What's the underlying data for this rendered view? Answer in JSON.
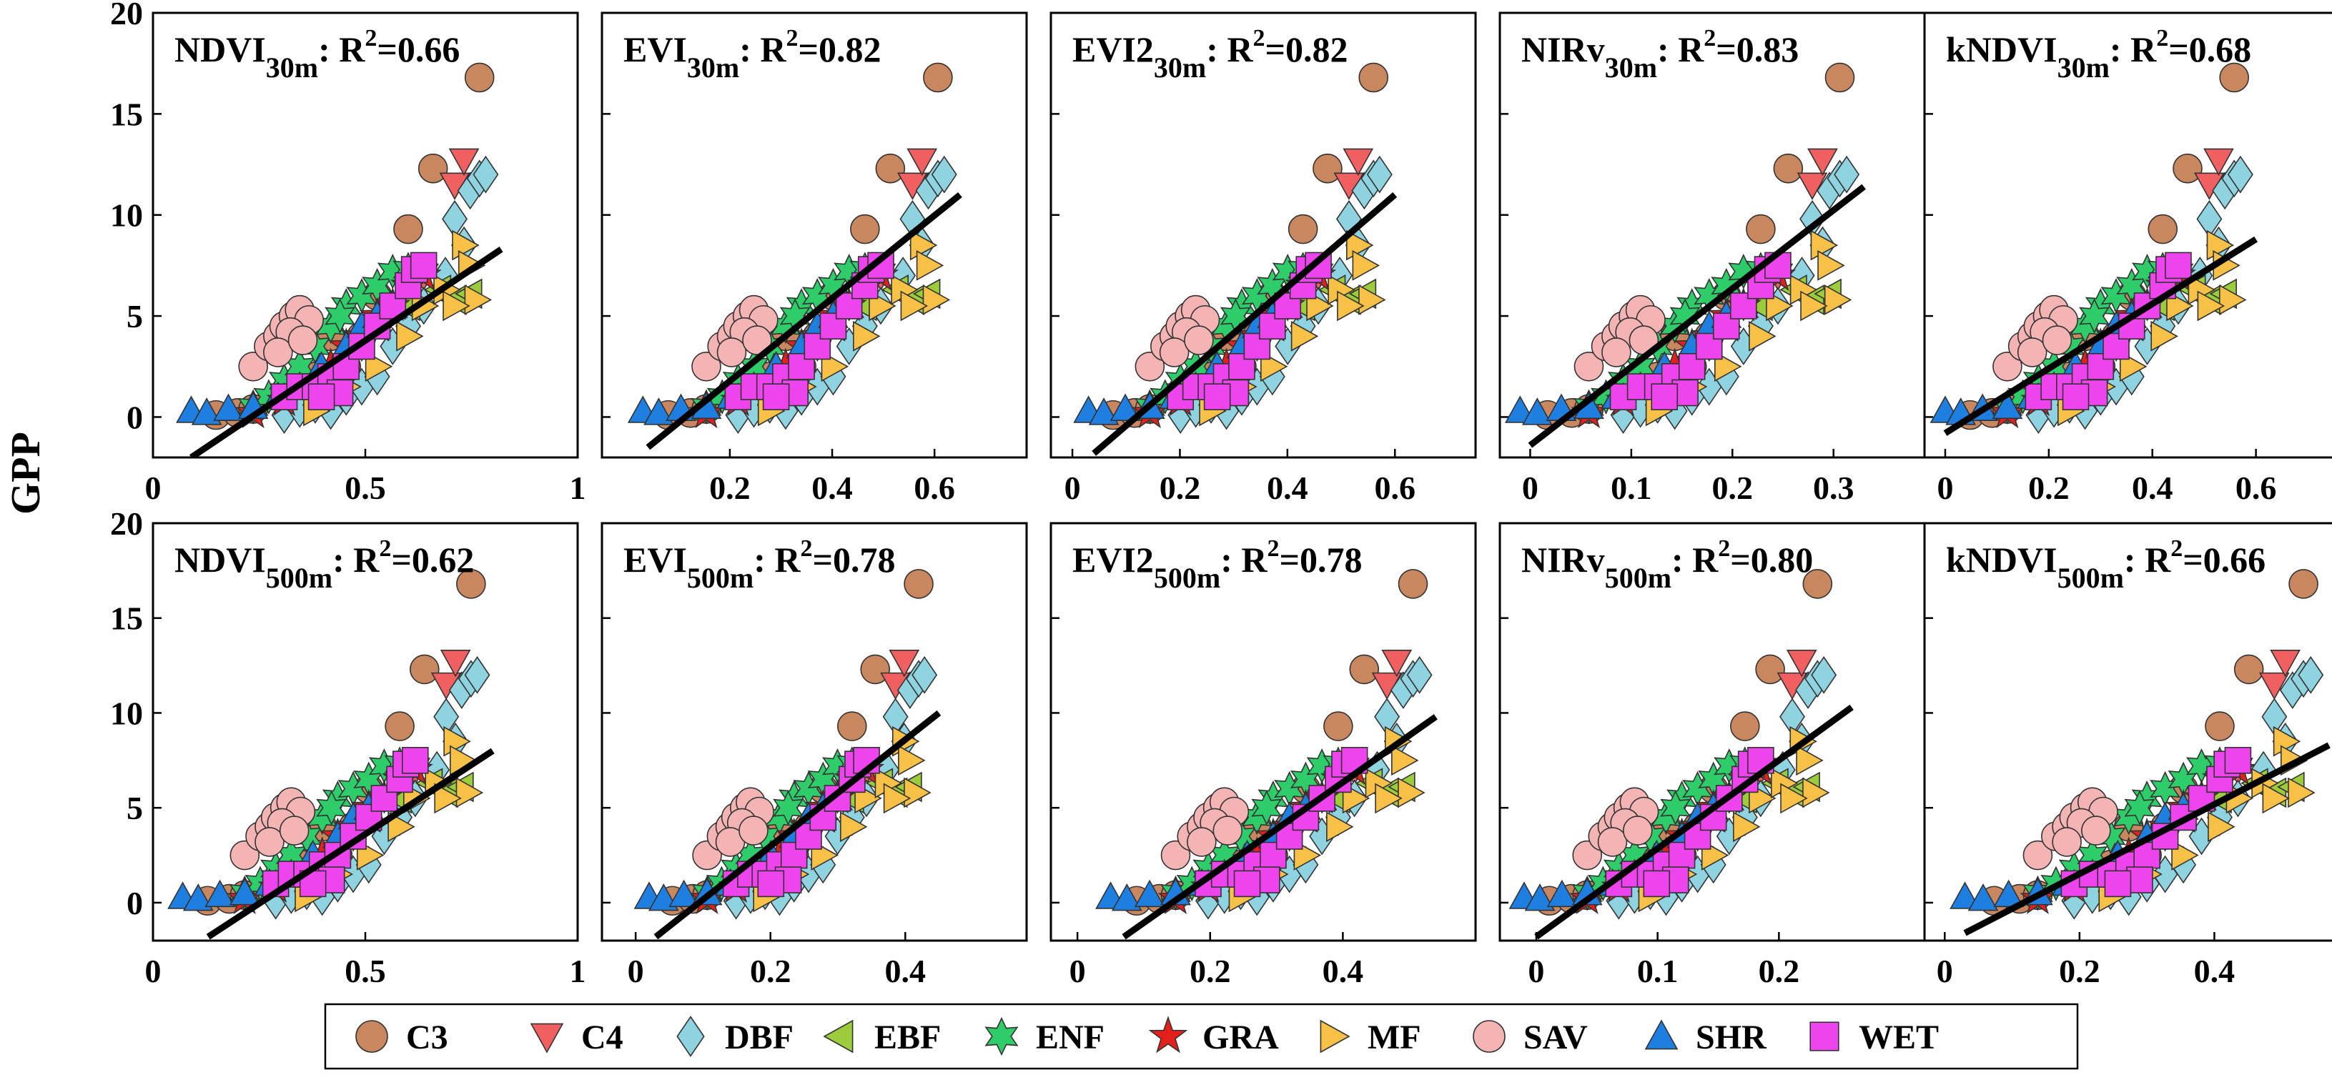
{
  "ylabel": "GPP",
  "colors": {
    "C3": "#c8875e",
    "C4": "#f06060",
    "DBF": "#8fd3e0",
    "EBF": "#9ccc3c",
    "ENF": "#2fcd6a",
    "GRA": "#e3201b",
    "MF": "#f7c046",
    "SAV": "#f5b4b4",
    "SHR": "#1f7fe0",
    "WET": "#ee44ee",
    "fit_line": "#000000",
    "axis": "#000000"
  },
  "legend": [
    {
      "label": "C3",
      "marker": "circle"
    },
    {
      "label": "C4",
      "marker": "triangle-down"
    },
    {
      "label": "DBF",
      "marker": "diamond"
    },
    {
      "label": "EBF",
      "marker": "triangle-left"
    },
    {
      "label": "ENF",
      "marker": "hexagram"
    },
    {
      "label": "GRA",
      "marker": "pentagram"
    },
    {
      "label": "MF",
      "marker": "triangle-right"
    },
    {
      "label": "SAV",
      "marker": "circle"
    },
    {
      "label": "SHR",
      "marker": "triangle-up"
    },
    {
      "label": "WET",
      "marker": "square"
    }
  ],
  "chart_data": [
    {
      "type": "scatter",
      "index": "NDVI",
      "sub": "30m",
      "r2_text": ": R",
      "r2_value": "=0.66",
      "xlim": [
        0,
        1
      ],
      "ylim": [
        -2,
        20
      ],
      "xticks": [
        0,
        0.5,
        1
      ],
      "xtick_labels": [
        "0",
        "0.5",
        "1"
      ],
      "yticks": [
        0,
        5,
        10,
        15,
        20
      ],
      "ytick_labels": [
        "0",
        "5",
        "10",
        "15",
        "20"
      ],
      "fit": [
        [
          0.09,
          -2
        ],
        [
          0.82,
          8.3
        ]
      ],
      "xmap": [
        0.09,
        0.82
      ]
    },
    {
      "type": "scatter",
      "index": "EVI",
      "sub": "30m",
      "r2_text": ": R",
      "r2_value": "=0.82",
      "xlim": [
        -0.05,
        0.78
      ],
      "ylim": [
        -2,
        20
      ],
      "xticks": [
        0.2,
        0.4,
        0.6
      ],
      "xtick_labels": [
        "0.2",
        "0.4",
        "0.6"
      ],
      "yticks": [
        0,
        5,
        10,
        15,
        20
      ],
      "ytick_labels": [
        "0",
        "5",
        "10",
        "15",
        "20"
      ],
      "fit": [
        [
          0.04,
          -1.5
        ],
        [
          0.65,
          11
        ]
      ],
      "xmap": [
        0.03,
        0.65
      ]
    },
    {
      "type": "scatter",
      "index": "EVI2",
      "sub": "30m",
      "r2_text": ": R",
      "r2_value": "=0.82",
      "xlim": [
        -0.04,
        0.75
      ],
      "ylim": [
        -2,
        20
      ],
      "xticks": [
        0,
        0.2,
        0.4,
        0.6
      ],
      "xtick_labels": [
        "0",
        "0.2",
        "0.4",
        "0.6"
      ],
      "yticks": [
        0,
        5,
        10,
        15,
        20
      ],
      "ytick_labels": [
        "0",
        "5",
        "10",
        "15",
        "20"
      ],
      "fit": [
        [
          0.04,
          -1.8
        ],
        [
          0.6,
          11
        ]
      ],
      "xmap": [
        0.03,
        0.6
      ]
    },
    {
      "type": "scatter",
      "index": "NIRv",
      "sub": "30m",
      "r2_text": ": R",
      "r2_value": "=0.83",
      "xlim": [
        -0.03,
        0.39
      ],
      "ylim": [
        -2,
        20
      ],
      "xticks": [
        0,
        0.1,
        0.2,
        0.3
      ],
      "xtick_labels": [
        "0",
        "0.1",
        "0.2",
        "0.3"
      ],
      "yticks": [
        0,
        5,
        10,
        15,
        20
      ],
      "ytick_labels": [
        "0",
        "5",
        "10",
        "15",
        "20"
      ],
      "fit": [
        [
          0,
          -1.4
        ],
        [
          0.33,
          11.4
        ]
      ],
      "xmap": [
        -0.01,
        0.33
      ]
    },
    {
      "type": "scatter",
      "index": "kNDVI",
      "sub": "30m",
      "r2_text": ": R",
      "r2_value": "=0.68",
      "xlim": [
        -0.04,
        0.78
      ],
      "ylim": [
        -2,
        20
      ],
      "xticks": [
        0,
        0.2,
        0.4,
        0.6
      ],
      "xtick_labels": [
        "0",
        "0.2",
        "0.4",
        "0.6"
      ],
      "yticks": [
        0,
        5,
        10,
        15,
        20
      ],
      "ytick_labels": [
        "0",
        "5",
        "10",
        "15",
        "20"
      ],
      "fit": [
        [
          0,
          -0.8
        ],
        [
          0.6,
          8.8
        ]
      ],
      "xmap": [
        0,
        0.6
      ]
    },
    {
      "type": "scatter",
      "index": "NDVI",
      "sub": "500m",
      "r2_text": ": R",
      "r2_value": "=0.62",
      "xlim": [
        0,
        1
      ],
      "ylim": [
        -2,
        20
      ],
      "xticks": [
        0,
        0.5,
        1
      ],
      "xtick_labels": [
        "0",
        "0.5",
        "1"
      ],
      "yticks": [
        0,
        5,
        10,
        15,
        20
      ],
      "ytick_labels": [
        "0",
        "5",
        "10",
        "15",
        "20"
      ],
      "fit": [
        [
          0.13,
          -1.8
        ],
        [
          0.8,
          8
        ]
      ],
      "xmap": [
        0.07,
        0.8
      ]
    },
    {
      "type": "scatter",
      "index": "EVI",
      "sub": "500m",
      "r2_text": ": R",
      "r2_value": "=0.78",
      "xlim": [
        -0.05,
        0.58
      ],
      "ylim": [
        -2,
        20
      ],
      "xticks": [
        0,
        0.2,
        0.4
      ],
      "xtick_labels": [
        "0",
        "0.2",
        "0.4"
      ],
      "yticks": [
        0,
        5,
        10,
        15,
        20
      ],
      "ytick_labels": [
        "0",
        "5",
        "10",
        "15",
        "20"
      ],
      "fit": [
        [
          0.03,
          -1.8
        ],
        [
          0.45,
          10
        ]
      ],
      "xmap": [
        0.02,
        0.45
      ]
    },
    {
      "type": "scatter",
      "index": "EVI2",
      "sub": "500m",
      "r2_text": ": R",
      "r2_value": "=0.78",
      "xlim": [
        -0.04,
        0.6
      ],
      "ylim": [
        -2,
        20
      ],
      "xticks": [
        0,
        0.2,
        0.4
      ],
      "xtick_labels": [
        "0",
        "0.2",
        "0.4"
      ],
      "yticks": [
        0,
        5,
        10,
        15,
        20
      ],
      "ytick_labels": [
        "0",
        "5",
        "10",
        "15",
        "20"
      ],
      "fit": [
        [
          0.07,
          -1.8
        ],
        [
          0.54,
          9.8
        ]
      ],
      "xmap": [
        0.05,
        0.54
      ]
    },
    {
      "type": "scatter",
      "index": "NIRv",
      "sub": "500m",
      "r2_text": ": R",
      "r2_value": "=0.80",
      "xlim": [
        -0.03,
        0.32
      ],
      "ylim": [
        -2,
        20
      ],
      "xticks": [
        0,
        0.1,
        0.2
      ],
      "xtick_labels": [
        "0",
        "0.1",
        "0.2"
      ],
      "yticks": [
        0,
        5,
        10,
        15,
        20
      ],
      "ytick_labels": [
        "0",
        "5",
        "10",
        "15",
        "20"
      ],
      "fit": [
        [
          0,
          -1.8
        ],
        [
          0.26,
          10.3
        ]
      ],
      "xmap": [
        -0.01,
        0.25
      ]
    },
    {
      "type": "scatter",
      "index": "kNDVI",
      "sub": "500m",
      "r2_text": ": R",
      "r2_value": "=0.66",
      "xlim": [
        -0.03,
        0.6
      ],
      "ylim": [
        -2,
        20
      ],
      "xticks": [
        0,
        0.2,
        0.4
      ],
      "xtick_labels": [
        "0",
        "0.2",
        "0.4"
      ],
      "yticks": [
        0,
        5,
        10,
        15,
        20
      ],
      "ytick_labels": [
        "0",
        "5",
        "10",
        "15",
        "20"
      ],
      "fit": [
        [
          0.03,
          -1.6
        ],
        [
          0.57,
          8.3
        ]
      ],
      "xmap": [
        0.03,
        0.57
      ]
    }
  ],
  "points": {
    "C3": [
      [
        0.08,
        0.1
      ],
      [
        0.15,
        0.2
      ],
      [
        0.2,
        0.4
      ],
      [
        0.35,
        1.2
      ],
      [
        0.4,
        2.0
      ],
      [
        0.45,
        4.0
      ],
      [
        0.5,
        2.5
      ],
      [
        0.55,
        4.0
      ],
      [
        0.6,
        6.0
      ],
      [
        0.7,
        9.3
      ],
      [
        0.78,
        12.3
      ],
      [
        0.93,
        16.8
      ]
    ],
    "C4": [
      [
        0.55,
        3.5
      ],
      [
        0.65,
        5.5
      ],
      [
        0.75,
        7.0
      ],
      [
        0.85,
        11.5
      ],
      [
        0.88,
        12.7
      ]
    ],
    "DBF": [
      [
        0.3,
        0.1
      ],
      [
        0.35,
        0.4
      ],
      [
        0.4,
        0.6
      ],
      [
        0.45,
        0.3
      ],
      [
        0.5,
        1.0
      ],
      [
        0.55,
        1.5
      ],
      [
        0.6,
        2.0
      ],
      [
        0.65,
        3.5
      ],
      [
        0.7,
        4.5
      ],
      [
        0.75,
        5.5
      ],
      [
        0.82,
        7.0
      ],
      [
        0.88,
        8.5
      ],
      [
        0.9,
        11.2
      ],
      [
        0.93,
        11.8
      ],
      [
        0.95,
        12.0
      ],
      [
        0.85,
        9.8
      ]
    ],
    "EBF": [
      [
        0.6,
        4.5
      ],
      [
        0.7,
        5.5
      ],
      [
        0.8,
        6.3
      ],
      [
        0.85,
        5.8
      ],
      [
        0.9,
        6.1
      ]
    ],
    "ENF": [
      [
        0.2,
        0.5
      ],
      [
        0.25,
        1.0
      ],
      [
        0.3,
        1.8
      ],
      [
        0.35,
        2.5
      ],
      [
        0.4,
        3.5
      ],
      [
        0.45,
        4.5
      ],
      [
        0.5,
        5.5
      ],
      [
        0.55,
        6.0
      ],
      [
        0.6,
        6.5
      ],
      [
        0.65,
        7.2
      ],
      [
        0.7,
        7.3
      ],
      [
        0.48,
        5.0
      ]
    ],
    "GRA": [
      [
        0.2,
        0.2
      ],
      [
        0.3,
        0.8
      ],
      [
        0.4,
        1.5
      ],
      [
        0.45,
        2.5
      ],
      [
        0.5,
        3.5
      ],
      [
        0.55,
        4.0
      ],
      [
        0.6,
        5.0
      ],
      [
        0.65,
        5.5
      ],
      [
        0.7,
        6.5
      ],
      [
        0.75,
        7.0
      ]
    ],
    "MF": [
      [
        0.4,
        0.3
      ],
      [
        0.5,
        1.5
      ],
      [
        0.6,
        2.5
      ],
      [
        0.7,
        4.0
      ],
      [
        0.75,
        5.5
      ],
      [
        0.82,
        6.3
      ],
      [
        0.88,
        8.5
      ],
      [
        0.9,
        7.5
      ],
      [
        0.92,
        5.8
      ],
      [
        0.85,
        5.5
      ]
    ],
    "SAV": [
      [
        0.2,
        2.5
      ],
      [
        0.25,
        3.5
      ],
      [
        0.28,
        4.0
      ],
      [
        0.3,
        4.5
      ],
      [
        0.33,
        5.0
      ],
      [
        0.35,
        5.3
      ],
      [
        0.38,
        4.8
      ],
      [
        0.32,
        4.2
      ],
      [
        0.28,
        3.2
      ],
      [
        0.36,
        3.8
      ]
    ],
    "SHR": [
      [
        0.0,
        0.3
      ],
      [
        0.05,
        0.2
      ],
      [
        0.12,
        0.4
      ],
      [
        0.2,
        0.5
      ],
      [
        0.28,
        1.0
      ],
      [
        0.35,
        1.5
      ],
      [
        0.42,
        2.5
      ],
      [
        0.5,
        3.5
      ],
      [
        0.55,
        4.5
      ],
      [
        0.6,
        5.0
      ],
      [
        0.65,
        5.5
      ]
    ],
    "WET": [
      [
        0.3,
        1.0
      ],
      [
        0.35,
        1.5
      ],
      [
        0.4,
        1.5
      ],
      [
        0.45,
        2.0
      ],
      [
        0.5,
        2.5
      ],
      [
        0.55,
        3.5
      ],
      [
        0.6,
        4.5
      ],
      [
        0.65,
        5.5
      ],
      [
        0.7,
        6.5
      ],
      [
        0.72,
        7.3
      ],
      [
        0.75,
        7.5
      ],
      [
        0.48,
        1.2
      ],
      [
        0.42,
        1.0
      ]
    ]
  }
}
